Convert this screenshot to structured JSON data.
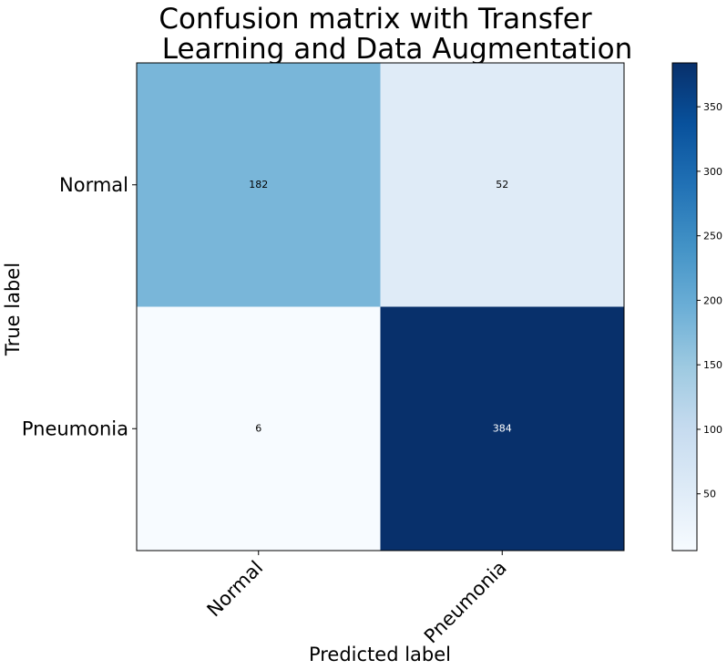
{
  "chart_data": {
    "type": "heatmap",
    "title_lines": [
      "Confusion matrix with Transfer",
      "Learning and Data Augmentation"
    ],
    "xlabel": "Predicted label",
    "ylabel": "True label",
    "x_categories": [
      "Normal",
      "Pneumonia"
    ],
    "y_categories": [
      "Normal",
      "Pneumonia"
    ],
    "matrix": [
      [
        182,
        52
      ],
      [
        6,
        384
      ]
    ],
    "colormap": "Blues",
    "colormap_stops": [
      "#f7fbff",
      "#deebf7",
      "#c6dbef",
      "#9ecae1",
      "#6baed6",
      "#4292c6",
      "#2171b5",
      "#08519c",
      "#08306b"
    ],
    "value_range": [
      6,
      384
    ],
    "colorbar_ticks": [
      50,
      100,
      150,
      200,
      250,
      300,
      350
    ]
  }
}
